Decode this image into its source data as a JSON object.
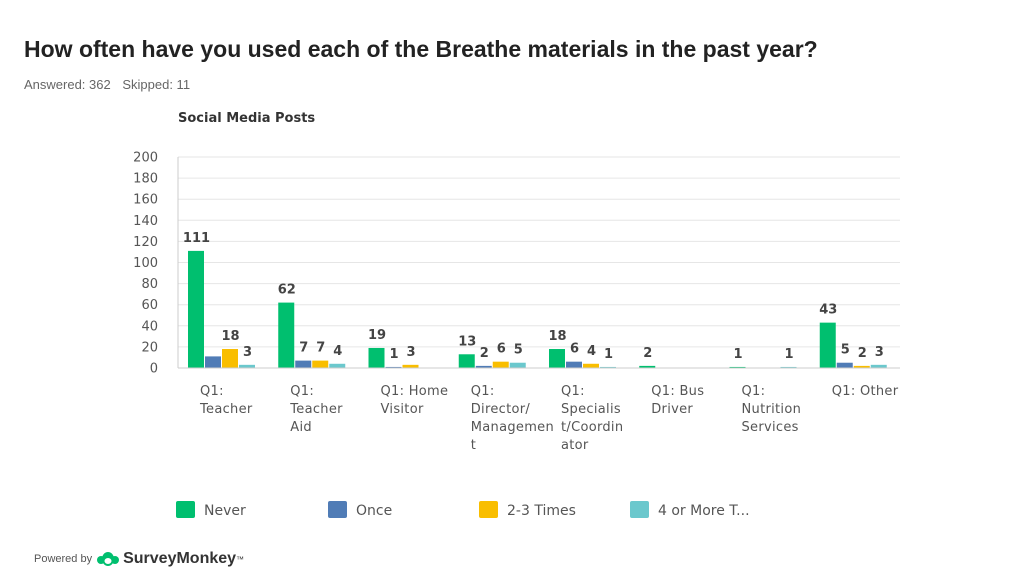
{
  "header": {
    "title": "How often have you used each of the Breathe materials in the past year?",
    "answered": "Answered: 362",
    "skipped": "Skipped: 11"
  },
  "footer": {
    "powered_by": "Powered by",
    "brand": "SurveyMonkey",
    "brand_mark": "™"
  },
  "colors": {
    "never": "#00bf6f",
    "once": "#507cb6",
    "two_three": "#f9be00",
    "four_more": "#6bc8cd"
  },
  "chart_data": {
    "type": "bar",
    "title": "Social Media Posts",
    "ylim": [
      0,
      200
    ],
    "yticks": [
      "0",
      "20",
      "40",
      "60",
      "80",
      "100",
      "120",
      "140",
      "160",
      "180",
      "200"
    ],
    "grid": true,
    "legend_position": "bottom",
    "categories": [
      [
        "Q1:",
        "Teacher"
      ],
      [
        "Q1:",
        "Teacher",
        "Aid"
      ],
      [
        "Q1: Home",
        "Visitor"
      ],
      [
        "Q1:",
        "Director/",
        "Managemen",
        "t"
      ],
      [
        "Q1:",
        "Specialis",
        "t/Coordin",
        "ator"
      ],
      [
        "Q1: Bus",
        "Driver"
      ],
      [
        "Q1:",
        "Nutrition",
        "Services"
      ],
      [
        "Q1: Other"
      ]
    ],
    "series": [
      {
        "name": "Never",
        "color": "#00bf6f",
        "values": [
          111,
          62,
          19,
          13,
          18,
          2,
          1,
          43
        ]
      },
      {
        "name": "Once",
        "color": "#507cb6",
        "values": [
          11,
          7,
          1,
          2,
          6,
          0,
          0,
          5
        ]
      },
      {
        "name": "2-3 Times",
        "color": "#f9be00",
        "values": [
          18,
          7,
          3,
          6,
          4,
          0,
          0,
          2
        ]
      },
      {
        "name": "4 or More T...",
        "color": "#6bc8cd",
        "values": [
          3,
          4,
          0,
          5,
          1,
          0,
          1,
          3
        ]
      }
    ],
    "data_labels": [
      [
        "111",
        "",
        "18",
        "3"
      ],
      [
        "62",
        "7",
        "7",
        "4"
      ],
      [
        "19",
        "1",
        "3",
        ""
      ],
      [
        "13",
        "2",
        "6",
        "5"
      ],
      [
        "18",
        "6",
        "4",
        "1"
      ],
      [
        "2",
        "",
        "",
        ""
      ],
      [
        "1",
        "",
        "",
        "1"
      ],
      [
        "43",
        "5",
        "2",
        "3"
      ]
    ]
  }
}
